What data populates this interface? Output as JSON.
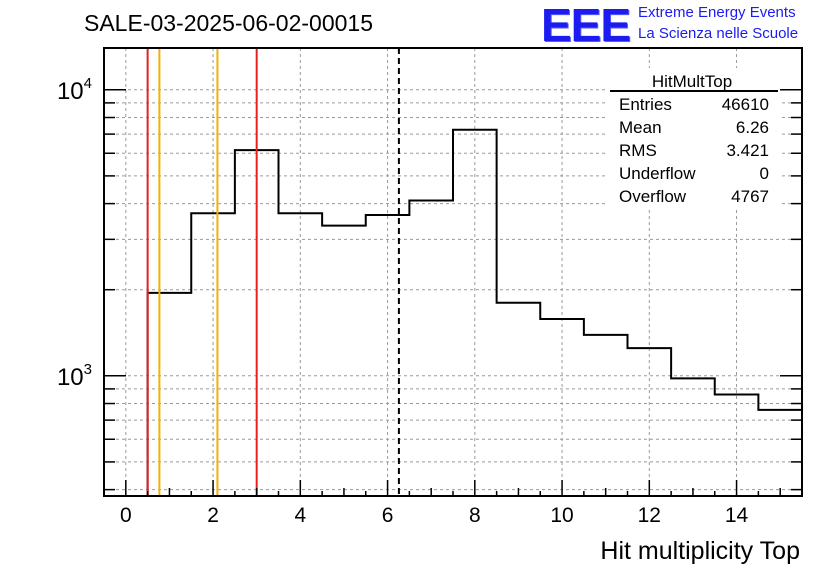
{
  "header": {
    "run_title": "SALE-03-2025-06-02-00015",
    "logo_text": "EEE",
    "logo_line1": "Extreme Energy Events",
    "logo_line2": "La Scienza nelle Scuole"
  },
  "colors": {
    "logo": "#1c1cf0",
    "red_line": "#e8211f",
    "orange_line": "#f2b200",
    "histogram": "#000000",
    "grid": "#9a9a9a"
  },
  "stats_box": {
    "title": "HitMultTop",
    "rows": [
      {
        "label": "Entries",
        "value": "46610"
      },
      {
        "label": "Mean",
        "value": "6.26"
      },
      {
        "label": "RMS",
        "value": "3.421"
      },
      {
        "label": "Underflow",
        "value": "0"
      },
      {
        "label": "Overflow",
        "value": "4767"
      }
    ]
  },
  "chart_data": {
    "type": "bar",
    "histogram_style": "step",
    "title": "SALE-03-2025-06-02-00015",
    "xlabel": "Hit multiplicity Top",
    "ylabel": "",
    "yscale": "log",
    "xlim": [
      -0.5,
      15.5
    ],
    "ylim": [
      380,
      14000
    ],
    "grid": true,
    "x_ticks": [
      0,
      2,
      4,
      6,
      8,
      10,
      12,
      14
    ],
    "y_major_ticks": [
      {
        "value": 1000,
        "base": "10",
        "exp": "3"
      },
      {
        "value": 10000,
        "base": "10",
        "exp": "4"
      }
    ],
    "bins": [
      {
        "low": 0.5,
        "high": 1.5,
        "count": 1950
      },
      {
        "low": 1.5,
        "high": 2.5,
        "count": 3700
      },
      {
        "low": 2.5,
        "high": 3.5,
        "count": 6150
      },
      {
        "low": 3.5,
        "high": 4.5,
        "count": 3700
      },
      {
        "low": 4.5,
        "high": 5.5,
        "count": 3350
      },
      {
        "low": 5.5,
        "high": 6.5,
        "count": 3650
      },
      {
        "low": 6.5,
        "high": 7.5,
        "count": 4100
      },
      {
        "low": 7.5,
        "high": 8.5,
        "count": 7250
      },
      {
        "low": 8.5,
        "high": 9.5,
        "count": 1800
      },
      {
        "low": 9.5,
        "high": 10.5,
        "count": 1580
      },
      {
        "low": 10.5,
        "high": 11.5,
        "count": 1390
      },
      {
        "low": 11.5,
        "high": 12.5,
        "count": 1250
      },
      {
        "low": 12.5,
        "high": 13.5,
        "count": 980
      },
      {
        "low": 13.5,
        "high": 14.5,
        "count": 860
      },
      {
        "low": 14.5,
        "high": 15.5,
        "count": 760
      }
    ],
    "vertical_lines": [
      {
        "x": 0.5,
        "style": "solid",
        "color": "#e8211f"
      },
      {
        "x": 0.77,
        "style": "solid",
        "color": "#f2b200"
      },
      {
        "x": 2.1,
        "style": "solid",
        "color": "#f2b200"
      },
      {
        "x": 3.0,
        "style": "solid",
        "color": "#e8211f"
      },
      {
        "x": 6.26,
        "style": "dashed",
        "color": "#000000"
      }
    ]
  }
}
